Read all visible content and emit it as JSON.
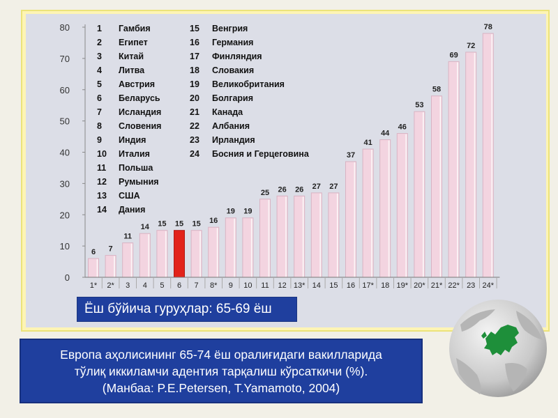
{
  "colors": {
    "bar": "#f3d4e0",
    "bar_edge": "#d9b3c3",
    "bar_highlight": "#e2231a",
    "panel": "#dcdee7",
    "frame": "#fdf4b4",
    "box": "#1f3f9e"
  },
  "chart_data": {
    "type": "bar",
    "categories": [
      "1*",
      "2*",
      "3",
      "4",
      "5",
      "6",
      "7",
      "8*",
      "9",
      "10",
      "11",
      "12",
      "13*",
      "14",
      "15",
      "16",
      "17*",
      "18",
      "19*",
      "20*",
      "21*",
      "22*",
      "23",
      "24*"
    ],
    "values": [
      6,
      7,
      11,
      14,
      15,
      15,
      15,
      16,
      19,
      19,
      25,
      26,
      26,
      27,
      27,
      37,
      41,
      44,
      46,
      53,
      58,
      69,
      72,
      78
    ],
    "highlight_index": 5,
    "ylim": [
      0,
      80
    ],
    "yticks": [
      0,
      10,
      20,
      30,
      40,
      50,
      60,
      70,
      80
    ],
    "grid": false,
    "legend_position": "top-left",
    "legend": [
      {
        "num": "1",
        "name": "Гамбия"
      },
      {
        "num": "2",
        "name": "Египет"
      },
      {
        "num": "3",
        "name": "Китай"
      },
      {
        "num": "4",
        "name": "Литва"
      },
      {
        "num": "5",
        "name": "Австрия"
      },
      {
        "num": "6",
        "name": "Беларусь"
      },
      {
        "num": "7",
        "name": "Исландия"
      },
      {
        "num": "8",
        "name": "Словения"
      },
      {
        "num": "9",
        "name": "Индия"
      },
      {
        "num": "10",
        "name": "Италия"
      },
      {
        "num": "11",
        "name": "Польша"
      },
      {
        "num": "12",
        "name": "Румыния"
      },
      {
        "num": "13",
        "name": "США"
      },
      {
        "num": "14",
        "name": "Дания"
      },
      {
        "num": "15",
        "name": "Венгрия"
      },
      {
        "num": "16",
        "name": "Германия"
      },
      {
        "num": "17",
        "name": "Финляндия"
      },
      {
        "num": "18",
        "name": "Словакия"
      },
      {
        "num": "19",
        "name": "Великобритания"
      },
      {
        "num": "20",
        "name": "Болгария"
      },
      {
        "num": "21",
        "name": "Канада"
      },
      {
        "num": "22",
        "name": "Албания"
      },
      {
        "num": "23",
        "name": "Ирландия"
      },
      {
        "num": "24",
        "name": "Босния и Герцеговина"
      }
    ]
  },
  "age_group": "Ёш бўйича гуруҳлар: 65-69 ёш",
  "caption": {
    "line1": "Европа аҳолисининг 65-74 ёш оралиғидаги вакилларида",
    "line2": "тўлиқ иккиламчи адентия тарқалиш кўрсаткичи (%).",
    "line3": "(Манбаа: P.E.Petersen, T.Yamamoto, 2004)"
  },
  "globe_icon": "europe-globe-icon"
}
